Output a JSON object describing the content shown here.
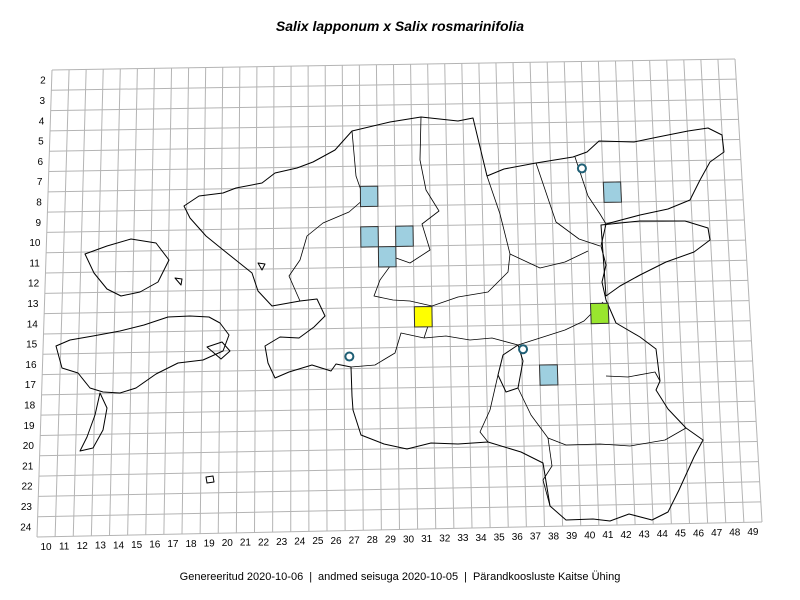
{
  "title": "Salix lapponum x Salix rosmarinifolia",
  "footer": {
    "generated": "Genereeritud 2020-10-06",
    "data_state": "andmed seisuga 2020-10-05",
    "organization": "Pärandkoosluste Kaitse Ühing"
  },
  "grid": {
    "row_labels": [
      "2",
      "3",
      "4",
      "5",
      "6",
      "7",
      "8",
      "9",
      "10",
      "11",
      "12",
      "13",
      "14",
      "15",
      "16",
      "17",
      "18",
      "19",
      "20",
      "21",
      "22",
      "23",
      "24"
    ],
    "col_labels": [
      "10",
      "11",
      "12",
      "13",
      "14",
      "15",
      "16",
      "17",
      "18",
      "19",
      "20",
      "21",
      "22",
      "23",
      "24",
      "25",
      "26",
      "27",
      "28",
      "29",
      "30",
      "31",
      "32",
      "33",
      "34",
      "35",
      "36",
      "37",
      "38",
      "39",
      "40",
      "41",
      "42",
      "43",
      "44",
      "45",
      "46",
      "47",
      "48",
      "49"
    ]
  },
  "colors": {
    "grid_line": "#b4b4b4",
    "border": "#000000",
    "record_square": "#9ecfe0",
    "yellow_square": "#ffff00",
    "green_square": "#99e62e",
    "circle_marker": "#1f5f75"
  },
  "records": {
    "squares": [
      {
        "col": 28,
        "row": 8,
        "kind": "record_square"
      },
      {
        "col": 28,
        "row": 10,
        "kind": "record_square"
      },
      {
        "col": 30,
        "row": 10,
        "kind": "record_square"
      },
      {
        "col": 29,
        "row": 11,
        "kind": "record_square"
      },
      {
        "col": 42,
        "row": 8,
        "kind": "record_square"
      },
      {
        "col": 31,
        "row": 14,
        "kind": "yellow_square"
      },
      {
        "col": 41,
        "row": 14,
        "kind": "green_square"
      },
      {
        "col": 38,
        "row": 17,
        "kind": "record_square"
      }
    ],
    "circles": [
      {
        "col": 40.8,
        "row": 7.3
      },
      {
        "col": 27.3,
        "row": 16.4
      },
      {
        "col": 37.1,
        "row": 16.2
      }
    ]
  }
}
